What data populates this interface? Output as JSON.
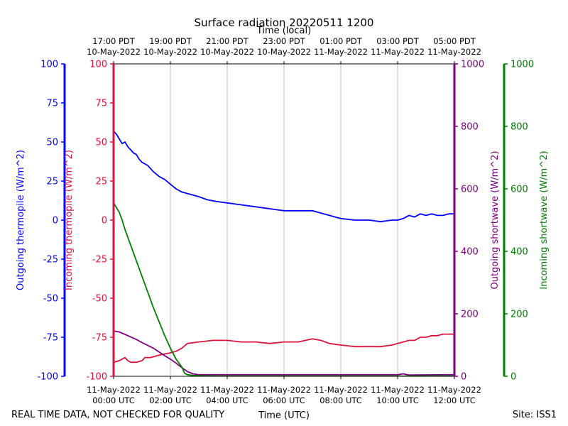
{
  "chart_data": {
    "type": "line",
    "title": "Surface radiation 20220511 1200",
    "top_axis_label": "Time (local)",
    "xlabel": "Time (UTC)",
    "footer_left": "REAL TIME DATA, NOT CHECKED FOR QUALITY",
    "footer_right": "Site: ISS1",
    "xlim": [
      0,
      12
    ],
    "x_ticks": [
      0,
      2,
      4,
      6,
      8,
      10,
      12
    ],
    "x_tick_labels_utc": [
      [
        "11-May-2022",
        "00:00 UTC"
      ],
      [
        "11-May-2022",
        "02:00 UTC"
      ],
      [
        "11-May-2022",
        "04:00 UTC"
      ],
      [
        "11-May-2022",
        "06:00 UTC"
      ],
      [
        "11-May-2022",
        "08:00 UTC"
      ],
      [
        "11-May-2022",
        "10:00 UTC"
      ],
      [
        "11-May-2022",
        "12:00 UTC"
      ]
    ],
    "x_tick_labels_local": [
      [
        "17:00 PDT",
        "10-May-2022"
      ],
      [
        "19:00 PDT",
        "10-May-2022"
      ],
      [
        "21:00 PDT",
        "10-May-2022"
      ],
      [
        "23:00 PDT",
        "10-May-2022"
      ],
      [
        "01:00 PDT",
        "11-May-2022"
      ],
      [
        "03:00 PDT",
        "11-May-2022"
      ],
      [
        "05:00 PDT",
        "11-May-2022"
      ]
    ],
    "grid": true,
    "axes": [
      {
        "id": "thermo_out",
        "label": "Outgoing thermopile (W/m^2)",
        "color": "#0000ff",
        "ylim": [
          -100,
          100
        ],
        "ticks": [
          -100,
          -75,
          -50,
          -25,
          0,
          25,
          50,
          75,
          100
        ],
        "side": "left-outer"
      },
      {
        "id": "thermo_in",
        "label": "Incoming thermopile (W/m^2)",
        "color": "#dc143c",
        "ylim": [
          -100,
          100
        ],
        "ticks": [
          -100,
          -75,
          -50,
          -25,
          0,
          25,
          50,
          75,
          100
        ],
        "side": "left-inner"
      },
      {
        "id": "sw_out",
        "label": "Outgoing shortwave (W/m^2)",
        "color": "#800080",
        "ylim": [
          0,
          1000
        ],
        "ticks": [
          0,
          200,
          400,
          600,
          800,
          1000
        ],
        "side": "right-inner"
      },
      {
        "id": "sw_in",
        "label": "Incoming shortwave (W/m^2)",
        "color": "#008000",
        "ylim": [
          0,
          1000
        ],
        "ticks": [
          0,
          200,
          400,
          600,
          800,
          1000
        ],
        "side": "right-outer"
      }
    ],
    "series": [
      {
        "name": "Outgoing thermopile",
        "axis": "thermo_out",
        "color": "#0000ff",
        "x": [
          0,
          0.1,
          0.2,
          0.3,
          0.4,
          0.5,
          0.6,
          0.7,
          0.8,
          0.9,
          1.0,
          1.2,
          1.4,
          1.6,
          1.8,
          2.0,
          2.2,
          2.4,
          2.6,
          2.8,
          3.0,
          3.3,
          3.6,
          4.0,
          4.4,
          4.8,
          5.2,
          5.6,
          6.0,
          6.4,
          6.8,
          7.0,
          7.2,
          7.4,
          7.6,
          7.8,
          8.0,
          8.5,
          9.0,
          9.4,
          9.8,
          10.0,
          10.2,
          10.4,
          10.6,
          10.8,
          11.0,
          11.2,
          11.4,
          11.6,
          11.8,
          12.0
        ],
        "y": [
          57,
          55,
          52,
          49,
          50,
          47,
          45,
          43,
          42,
          39,
          37,
          35,
          31,
          28,
          26,
          23,
          20,
          18,
          17,
          16,
          15,
          13,
          12,
          11,
          10,
          9,
          8,
          7,
          6,
          6,
          6,
          6,
          5,
          4,
          3,
          2,
          1,
          0,
          0,
          -1,
          0,
          0,
          1,
          3,
          2,
          4,
          3,
          4,
          3,
          3,
          4,
          4
        ]
      },
      {
        "name": "Incoming thermopile",
        "axis": "thermo_in",
        "color": "#dc143c",
        "x": [
          0,
          0.2,
          0.4,
          0.5,
          0.6,
          0.8,
          1.0,
          1.1,
          1.3,
          1.5,
          1.7,
          2.0,
          2.2,
          2.4,
          2.6,
          3.0,
          3.5,
          4.0,
          4.5,
          5.0,
          5.5,
          6.0,
          6.5,
          7.0,
          7.3,
          7.6,
          8.0,
          8.5,
          9.0,
          9.4,
          9.8,
          10.0,
          10.2,
          10.4,
          10.6,
          10.8,
          11.0,
          11.2,
          11.4,
          11.6,
          11.8,
          12.0
        ],
        "y": [
          -91,
          -90,
          -88,
          -90,
          -91,
          -91,
          -90,
          -88,
          -88,
          -87,
          -86,
          -85,
          -84,
          -82,
          -79,
          -78,
          -77,
          -77,
          -78,
          -78,
          -79,
          -78,
          -78,
          -76,
          -77,
          -79,
          -80,
          -81,
          -81,
          -81,
          -80,
          -79,
          -78,
          -77,
          -77,
          -75,
          -75,
          -74,
          -74,
          -73,
          -73,
          -73
        ]
      },
      {
        "name": "Outgoing shortwave",
        "axis": "sw_out",
        "color": "#800080",
        "x": [
          0,
          0.2,
          0.4,
          0.6,
          0.8,
          1.0,
          1.2,
          1.4,
          1.6,
          1.8,
          2.0,
          2.2,
          2.4,
          2.6,
          2.8,
          3.0,
          4.0,
          6.0,
          8.0,
          10.0,
          10.2,
          10.4,
          12.0
        ],
        "y": [
          145,
          142,
          134,
          126,
          118,
          108,
          99,
          90,
          78,
          66,
          55,
          42,
          28,
          15,
          8,
          5,
          5,
          5,
          5,
          5,
          8,
          4,
          5
        ]
      },
      {
        "name": "Incoming shortwave",
        "axis": "sw_in",
        "color": "#008000",
        "x": [
          0,
          0.1,
          0.2,
          0.3,
          0.4,
          0.6,
          0.8,
          1.0,
          1.2,
          1.4,
          1.6,
          1.8,
          2.0,
          2.2,
          2.4,
          2.5,
          2.6,
          2.8,
          3.0,
          3.5,
          4.0,
          6.0,
          8.0,
          10.0,
          12.0
        ],
        "y": [
          555,
          540,
          525,
          500,
          470,
          420,
          370,
          320,
          270,
          220,
          175,
          130,
          90,
          55,
          30,
          10,
          5,
          3,
          2,
          1,
          1,
          1,
          1,
          1,
          1
        ]
      }
    ]
  }
}
